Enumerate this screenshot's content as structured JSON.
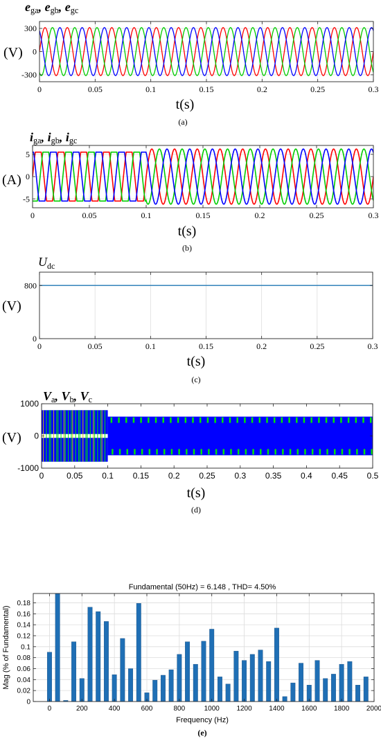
{
  "colors": {
    "phase_a": "#ff0000",
    "phase_b": "#00cc00",
    "phase_c": "#0000ff",
    "udc": "#1f77b4",
    "vabc_blue": "#0000ff",
    "vabc_green": "#00e600",
    "fft_bar": "#1f6fb5"
  },
  "chart_data": [
    {
      "id": "a",
      "type": "line",
      "caption": "(a)",
      "title_parts": [
        {
          "t": "e",
          "sub": "ga"
        },
        {
          "t": ", "
        },
        {
          "t": "e",
          "sub": "gb"
        },
        {
          "t": ", "
        },
        {
          "t": "e",
          "sub": "gc"
        }
      ],
      "ylabel": "(V)",
      "xlabel": "t(s)",
      "xlim": [
        0,
        0.3
      ],
      "ylim": [
        -390,
        390
      ],
      "xticks": [
        0,
        0.05,
        0.1,
        0.15,
        0.2,
        0.25,
        0.3
      ],
      "xtick_labels": [
        "0",
        "0.05",
        "0.1",
        "0.15",
        "0.2",
        "0.25",
        "0.3"
      ],
      "yticks": [
        -300,
        0,
        300
      ],
      "ytick_labels": [
        "-300",
        "0",
        "300"
      ],
      "grid": true,
      "series": [
        {
          "phase": "a",
          "amplitude": 311,
          "freq_hz": 50,
          "phase_deg": 0
        },
        {
          "phase": "b",
          "amplitude": 311,
          "freq_hz": 50,
          "phase_deg": -120
        },
        {
          "phase": "c",
          "amplitude": 311,
          "freq_hz": 50,
          "phase_deg": 120
        }
      ]
    },
    {
      "id": "b",
      "type": "line",
      "caption": "(b)",
      "title_parts": [
        {
          "t": "i",
          "sub": "ga"
        },
        {
          "t": ", "
        },
        {
          "t": "i",
          "sub": "gb"
        },
        {
          "t": ", "
        },
        {
          "t": "i",
          "sub": "gc"
        }
      ],
      "ylabel": "(A)",
      "xlabel": "t(s)",
      "xlim": [
        0,
        0.3
      ],
      "ylim": [
        -7,
        7
      ],
      "xticks": [
        0,
        0.05,
        0.1,
        0.15,
        0.2,
        0.25,
        0.3
      ],
      "xtick_labels": [
        "0",
        "0.05",
        "0.1",
        "0.15",
        "0.2",
        "0.25",
        "0.3"
      ],
      "yticks": [
        -5,
        0,
        5
      ],
      "ytick_labels": [
        "-5",
        "0",
        "5"
      ],
      "grid": true,
      "switch_time": 0.1,
      "before": {
        "amplitude": 5.5,
        "freq_hz": 50,
        "shape": "clipped-sine"
      },
      "after": {
        "amplitude": 6.2,
        "freq_hz": 50,
        "shape": "sine"
      }
    },
    {
      "id": "c",
      "type": "line",
      "caption": "(c)",
      "title_parts": [
        {
          "t": "U",
          "sub": "dc",
          "plain_sub": true
        }
      ],
      "ylabel": "(V)",
      "xlabel": "t(s)",
      "xlim": [
        0,
        0.3
      ],
      "ylim": [
        0,
        1000
      ],
      "xticks": [
        0,
        0.05,
        0.1,
        0.15,
        0.2,
        0.25,
        0.3
      ],
      "xtick_labels": [
        "0",
        "0.05",
        "0.1",
        "0.15",
        "0.2",
        "0.25",
        "0.3"
      ],
      "yticks": [
        0,
        800
      ],
      "ytick_labels": [
        "0",
        "800"
      ],
      "grid": true,
      "series": [
        {
          "name": "",
          "x": [
            0,
            0.3
          ],
          "y": [
            800,
            800
          ]
        }
      ]
    },
    {
      "id": "d",
      "type": "line",
      "caption": "(d)",
      "title_parts": [
        {
          "t": "V",
          "sub": "a"
        },
        {
          "t": ", "
        },
        {
          "t": "V",
          "sub": "b"
        },
        {
          "t": ", "
        },
        {
          "t": "V",
          "sub": "c"
        }
      ],
      "ylabel": "(V)",
      "xlabel": "t(s)",
      "xlim": [
        0,
        0.5
      ],
      "ylim": [
        -1000,
        1000
      ],
      "xticks": [
        0,
        0.05,
        0.1,
        0.15,
        0.2,
        0.25,
        0.3,
        0.35,
        0.4,
        0.45,
        0.5
      ],
      "xtick_labels": [
        "0",
        "0.05",
        "0.1",
        "0.15",
        "0.2",
        "0.25",
        "0.3",
        "0.35",
        "0.4",
        "0.45",
        "0.5"
      ],
      "yticks": [
        -1000,
        0,
        1000
      ],
      "ytick_labels": [
        "-1000",
        "0",
        "1000"
      ],
      "grid": false,
      "switch_time": 0.1,
      "before_level": 800,
      "after_level": 600
    },
    {
      "id": "e",
      "type": "bar",
      "caption": "(e)",
      "title": "Fundamental (50Hz) = 6.148 , THD= 4.50%",
      "xlabel": "Frequency (Hz)",
      "ylabel": "Mag (% of Fundamental)",
      "xlim": [
        -100,
        2000
      ],
      "ylim": [
        0,
        0.197
      ],
      "xticks": [
        0,
        200,
        400,
        600,
        800,
        1000,
        1200,
        1400,
        1600,
        1800,
        2000
      ],
      "xtick_labels": [
        "0",
        "200",
        "400",
        "600",
        "800",
        "1000",
        "1200",
        "1400",
        "1600",
        "1800",
        "2000"
      ],
      "yticks": [
        0,
        0.02,
        0.04,
        0.06,
        0.08,
        0.1,
        0.12,
        0.14,
        0.16,
        0.18
      ],
      "ytick_labels": [
        "0",
        "0.02",
        "0.04",
        "0.06",
        "0.08",
        "0.1",
        "0.12",
        "0.14",
        "0.16",
        "0.18"
      ],
      "grid": true,
      "x": [
        0,
        50,
        100,
        150,
        200,
        250,
        300,
        350,
        400,
        450,
        500,
        550,
        600,
        650,
        700,
        750,
        800,
        850,
        900,
        950,
        1000,
        1050,
        1100,
        1150,
        1200,
        1250,
        1300,
        1350,
        1400,
        1450,
        1500,
        1550,
        1600,
        1650,
        1700,
        1750,
        1800,
        1850,
        1900,
        1950
      ],
      "values": [
        0.09,
        0.197,
        0.002,
        0.109,
        0.042,
        0.172,
        0.164,
        0.146,
        0.049,
        0.115,
        0.06,
        0.179,
        0.016,
        0.039,
        0.048,
        0.058,
        0.086,
        0.109,
        0.068,
        0.11,
        0.132,
        0.045,
        0.032,
        0.092,
        0.075,
        0.086,
        0.094,
        0.073,
        0.134,
        0.009,
        0.034,
        0.07,
        0.03,
        0.075,
        0.042,
        0.05,
        0.068,
        0.073,
        0.03,
        0.045
      ]
    }
  ]
}
